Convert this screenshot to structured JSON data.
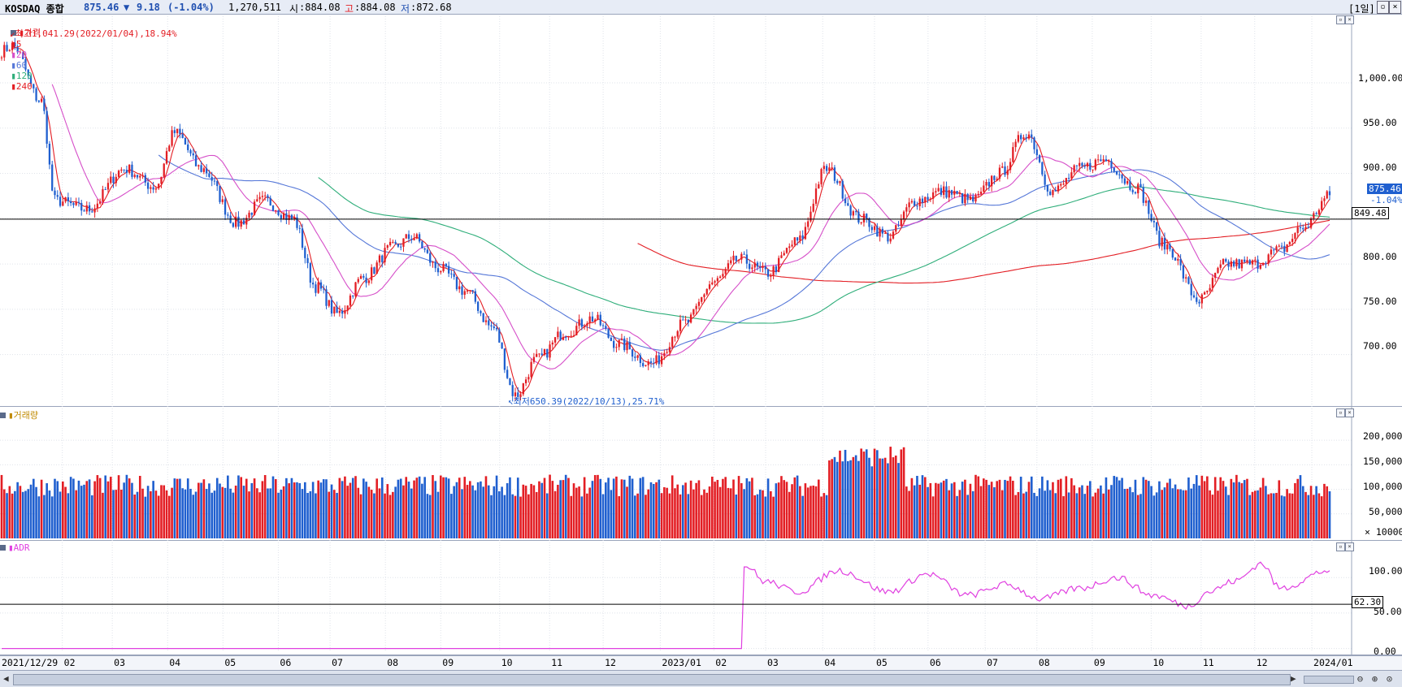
{
  "header": {
    "symbol": "KOSDAQ 종합",
    "price": "875.46",
    "change_arrow": "▼",
    "change": "9.18",
    "change_pct": "(-1.04%)",
    "volume": "1,270,511",
    "open_label": "시",
    "open": ":884.08",
    "high_label": "고",
    "high": ":884.08",
    "low_label": "저",
    "low": ":872.68",
    "period": "[1일]"
  },
  "price_panel": {
    "legend": {
      "price": "가격",
      "ma5": "5",
      "ma20": "20",
      "ma60": "60",
      "ma120": "120",
      "ma240": "240"
    },
    "max_note": "최고1,041.29(2022/01/04),18.94%",
    "min_note": "최저650.39(2022/10/13),25.71%",
    "last_price_tag": "875.46",
    "last_change_tag": "-1.04%",
    "ref_line_tag": "849.48",
    "y_ticks": [
      "1,000.00",
      "950.00",
      "900.00",
      "850.00",
      "800.00",
      "750.00",
      "700.00"
    ]
  },
  "volume_panel": {
    "title": "거래량",
    "y_ticks": [
      "200,000",
      "150,000",
      "100,000",
      "50,000"
    ],
    "unit": "× 10000"
  },
  "adr_panel": {
    "title": "ADR",
    "y_ticks": [
      "100.00",
      "50.00",
      "0.00"
    ],
    "ref_line_tag": "62.30"
  },
  "x_axis": [
    "2021/12/29",
    "02",
    "03",
    "04",
    "05",
    "06",
    "07",
    "08",
    "09",
    "10",
    "11",
    "12",
    "2023/01",
    "02",
    "03",
    "04",
    "05",
    "06",
    "07",
    "08",
    "09",
    "10",
    "11",
    "12",
    "2024/01"
  ],
  "colors": {
    "up": "#e31e24",
    "down": "#1f5fcf",
    "ma5": "#e31e24",
    "ma20": "#d64fc9",
    "ma60": "#5577d8",
    "ma120": "#2fae7a",
    "ma240": "#e31e24",
    "adr": "#e040e0"
  },
  "chart_data": [
    {
      "type": "candlestick",
      "title": "KOSDAQ 종합",
      "series": [
        {
          "name": "가격",
          "x": [
            "2021/12/29",
            "2022/01/04",
            "2022/01/20",
            "2022/01/28",
            "2022/02/15",
            "2022/03/08",
            "2022/03/25",
            "2022/04/05",
            "2022/04/20",
            "2022/05/10",
            "2022/05/25",
            "2022/06/10",
            "2022/06/23",
            "2022/07/05",
            "2022/07/20",
            "2022/08/05",
            "2022/08/16",
            "2022/08/31",
            "2022/09/15",
            "2022/09/30",
            "2022/10/13",
            "2022/10/25",
            "2022/11/10",
            "2022/11/25",
            "2022/12/09",
            "2022/12/28",
            "2023/01/16",
            "2023/02/01",
            "2023/02/15",
            "2023/03/03",
            "2023/03/20",
            "2023/04/05",
            "2023/04/24",
            "2023/05/10",
            "2023/05/25",
            "2023/06/09",
            "2023/06/26",
            "2023/07/11",
            "2023/07/26",
            "2023/08/10",
            "2023/08/25",
            "2023/09/08",
            "2023/09/25",
            "2023/10/12",
            "2023/10/31",
            "2023/11/15",
            "2023/11/30",
            "2023/12/15",
            "2023/12/28",
            "2024/01/12"
          ],
          "values": [
            1035,
            1041,
            980,
            870,
            860,
            905,
            885,
            945,
            905,
            845,
            870,
            850,
            775,
            745,
            785,
            818,
            830,
            795,
            770,
            730,
            655,
            695,
            725,
            740,
            712,
            690,
            735,
            780,
            805,
            790,
            825,
            905,
            850,
            830,
            870,
            880,
            870,
            900,
            945,
            880,
            905,
            915,
            885,
            820,
            760,
            800,
            800,
            815,
            840,
            875
          ]
        },
        {
          "name": "5",
          "x": [],
          "values": []
        },
        {
          "name": "20",
          "x": [],
          "values": []
        },
        {
          "name": "60",
          "x": [],
          "values": []
        },
        {
          "name": "120",
          "x": [],
          "values": []
        },
        {
          "name": "240",
          "x": [],
          "values": []
        }
      ],
      "ylim": [
        645,
        1060
      ]
    },
    {
      "type": "bar",
      "title": "거래량",
      "ylabel": "× 10000",
      "ylim": [
        0,
        240000
      ]
    },
    {
      "type": "line",
      "title": "ADR",
      "series": [
        {
          "name": "ADR",
          "x": [
            "2021/12/29",
            "2023/02/17",
            "2023/02/20",
            "2023/03/01",
            "2023/03/20",
            "2023/04/12",
            "2023/05/10",
            "2023/06/01",
            "2023/06/23",
            "2023/07/15",
            "2023/08/03",
            "2023/08/25",
            "2023/09/15",
            "2023/10/05",
            "2023/10/25",
            "2023/11/05",
            "2023/11/20",
            "2023/12/05",
            "2023/12/15",
            "2024/01/12"
          ],
          "values": [
            0,
            0,
            115,
            95,
            80,
            110,
            80,
            105,
            75,
            90,
            70,
            85,
            100,
            75,
            60,
            80,
            95,
            120,
            85,
            110
          ]
        }
      ],
      "ylim": [
        -5,
        130
      ]
    }
  ]
}
